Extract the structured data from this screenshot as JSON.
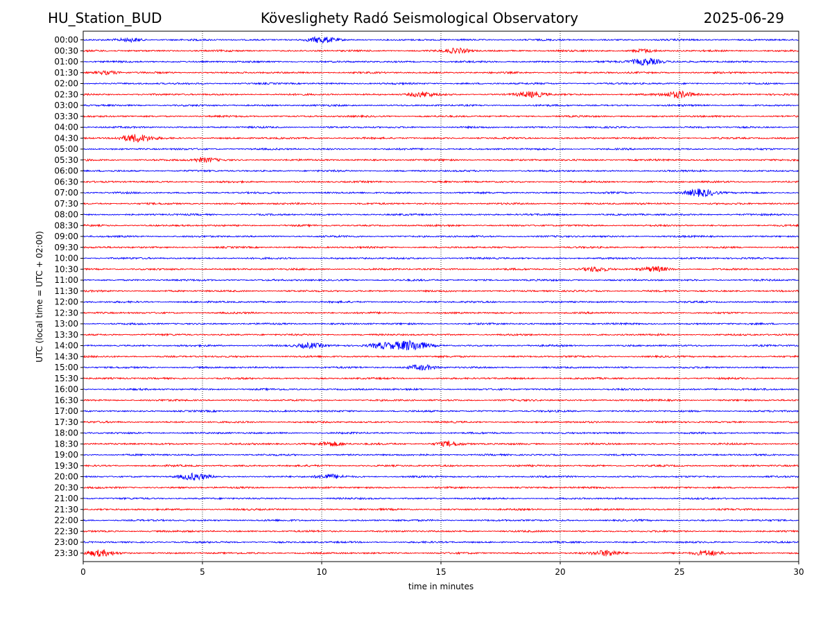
{
  "header": {
    "station": "HU_Station_BUD",
    "observatory": "Köveslighety Radó Seismological Observatory",
    "date": "2025-06-29"
  },
  "chart_data": {
    "type": "line",
    "title": "Köveslighety Radó Seismological Observatory",
    "xlabel": "time in minutes",
    "ylabel": "UTC (local time = UTC + 02:00)",
    "xlim": [
      0,
      30
    ],
    "x_ticks": [
      0,
      5,
      10,
      15,
      20,
      25,
      30
    ],
    "grid": "vertical dotted at x ticks",
    "row_colors": [
      "#0000ff",
      "#ff0000"
    ],
    "rows": [
      "00:00",
      "00:30",
      "01:00",
      "01:30",
      "02:00",
      "02:30",
      "03:00",
      "03:30",
      "04:00",
      "04:30",
      "05:00",
      "05:30",
      "06:00",
      "06:30",
      "07:00",
      "07:30",
      "08:00",
      "08:30",
      "09:00",
      "09:30",
      "10:00",
      "10:30",
      "11:00",
      "11:30",
      "12:00",
      "12:30",
      "13:00",
      "13:30",
      "14:00",
      "14:30",
      "15:00",
      "15:30",
      "16:00",
      "16:30",
      "17:00",
      "17:30",
      "18:00",
      "18:30",
      "19:00",
      "19:30",
      "20:00",
      "20:30",
      "21:00",
      "21:30",
      "22:00",
      "22:30",
      "23:00",
      "23:30"
    ],
    "bursts": [
      {
        "row": "00:00",
        "minute": 10,
        "amplitude": 0.55
      },
      {
        "row": "00:00",
        "minute": 2,
        "amplitude": 0.35
      },
      {
        "row": "00:30",
        "minute": 15.7,
        "amplitude": 0.45
      },
      {
        "row": "00:30",
        "minute": 23.5,
        "amplitude": 0.3
      },
      {
        "row": "01:00",
        "minute": 23.6,
        "amplitude": 0.7
      },
      {
        "row": "01:30",
        "minute": 1,
        "amplitude": 0.35
      },
      {
        "row": "02:30",
        "minute": 14.2,
        "amplitude": 0.45
      },
      {
        "row": "02:30",
        "minute": 18.8,
        "amplitude": 0.55
      },
      {
        "row": "02:30",
        "minute": 25,
        "amplitude": 0.65
      },
      {
        "row": "04:30",
        "minute": 2.2,
        "amplitude": 0.75
      },
      {
        "row": "05:30",
        "minute": 5.1,
        "amplitude": 0.4
      },
      {
        "row": "07:00",
        "minute": 25.9,
        "amplitude": 0.7
      },
      {
        "row": "10:30",
        "minute": 21.5,
        "amplitude": 0.45
      },
      {
        "row": "10:30",
        "minute": 24,
        "amplitude": 0.45
      },
      {
        "row": "14:00",
        "minute": 9.5,
        "amplitude": 0.5
      },
      {
        "row": "14:00",
        "minute": 12.5,
        "amplitude": 0.55
      },
      {
        "row": "14:00",
        "minute": 13.7,
        "amplitude": 0.95
      },
      {
        "row": "15:00",
        "minute": 14.2,
        "amplitude": 0.5
      },
      {
        "row": "18:30",
        "minute": 10.4,
        "amplitude": 0.45
      },
      {
        "row": "18:30",
        "minute": 15.3,
        "amplitude": 0.45
      },
      {
        "row": "20:00",
        "minute": 4.6,
        "amplitude": 0.6
      },
      {
        "row": "20:00",
        "minute": 10.3,
        "amplitude": 0.45
      },
      {
        "row": "23:30",
        "minute": 0.7,
        "amplitude": 0.55
      },
      {
        "row": "23:30",
        "minute": 22,
        "amplitude": 0.55
      },
      {
        "row": "23:30",
        "minute": 26.2,
        "amplitude": 0.5
      }
    ]
  }
}
